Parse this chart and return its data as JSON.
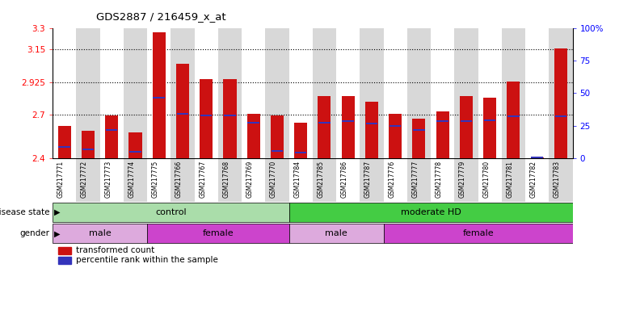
{
  "title": "GDS2887 / 216459_x_at",
  "samples": [
    "GSM217771",
    "GSM217772",
    "GSM217773",
    "GSM217774",
    "GSM217775",
    "GSM217766",
    "GSM217767",
    "GSM217768",
    "GSM217769",
    "GSM217770",
    "GSM217784",
    "GSM217785",
    "GSM217786",
    "GSM217787",
    "GSM217776",
    "GSM217777",
    "GSM217778",
    "GSM217779",
    "GSM217780",
    "GSM217781",
    "GSM217782",
    "GSM217783"
  ],
  "red_values": [
    2.62,
    2.59,
    2.695,
    2.58,
    3.27,
    3.05,
    2.945,
    2.945,
    2.705,
    2.695,
    2.645,
    2.83,
    2.83,
    2.79,
    2.705,
    2.67,
    2.72,
    2.83,
    2.82,
    2.93,
    2.405,
    3.16
  ],
  "blue_values": [
    2.475,
    2.46,
    2.595,
    2.445,
    2.82,
    2.705,
    2.695,
    2.695,
    2.645,
    2.45,
    2.44,
    2.645,
    2.655,
    2.64,
    2.62,
    2.595,
    2.655,
    2.655,
    2.66,
    2.69,
    2.405,
    2.69
  ],
  "ylim": [
    2.4,
    3.3
  ],
  "yticks": [
    2.4,
    2.7,
    2.925,
    3.15,
    3.3
  ],
  "ytick_labels": [
    "2.4",
    "2.7",
    "2.925",
    "3.15",
    "3.3"
  ],
  "right_yticks": [
    0,
    25,
    50,
    75,
    100
  ],
  "right_ytick_labels": [
    "0",
    "25",
    "50",
    "75",
    "100%"
  ],
  "hlines": [
    2.7,
    2.925,
    3.15
  ],
  "bar_color": "#cc1111",
  "blue_color": "#3333bb",
  "disease_state_groups": [
    {
      "label": "control",
      "start": 0,
      "end": 10,
      "color": "#aaddaa"
    },
    {
      "label": "moderate HD",
      "start": 10,
      "end": 22,
      "color": "#44cc44"
    }
  ],
  "gender_groups": [
    {
      "label": "male",
      "start": 0,
      "end": 4,
      "color": "#ddaadd"
    },
    {
      "label": "female",
      "start": 4,
      "end": 10,
      "color": "#cc44cc"
    },
    {
      "label": "male",
      "start": 10,
      "end": 14,
      "color": "#ddaadd"
    },
    {
      "label": "female",
      "start": 14,
      "end": 22,
      "color": "#cc44cc"
    }
  ],
  "legend_red_label": "transformed count",
  "legend_blue_label": "percentile rank within the sample",
  "disease_label": "disease state",
  "gender_label": "gender",
  "bar_width": 0.55,
  "bg_color_odd": "#d8d8d8",
  "bg_color_even": "#ffffff"
}
